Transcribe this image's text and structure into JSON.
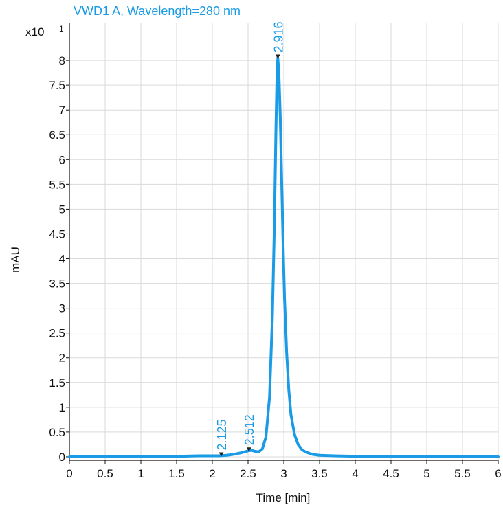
{
  "chart_data": {
    "type": "line",
    "title": "VWD1 A, Wavelength=280 nm",
    "xlabel": "Time [min]",
    "ylabel": "mAU",
    "y_multiplier": "x10",
    "y_exponent": "1",
    "xlim": [
      0,
      6
    ],
    "ylim": [
      -0.07,
      8.75
    ],
    "x_ticks": [
      "0",
      "0.5",
      "1",
      "1.5",
      "2",
      "2.5",
      "3",
      "3.5",
      "4",
      "4.5",
      "5",
      "5.5",
      "6"
    ],
    "y_ticks": [
      "0",
      "0.5",
      "1",
      "1.5",
      "2",
      "2.5",
      "3",
      "3.5",
      "4",
      "4.5",
      "5",
      "5.5",
      "6",
      "6.5",
      "7",
      "7.5",
      "8"
    ],
    "grid": true,
    "colors": {
      "trace": "#1a9be6",
      "marker": "#222222",
      "grid": "#d9d9d9",
      "axis": "#111111"
    },
    "series": [
      {
        "x": [
          0,
          0.5,
          1.0,
          1.3,
          1.5,
          1.8,
          2.0,
          2.1,
          2.2,
          2.3,
          2.4,
          2.45,
          2.5,
          2.55,
          2.6,
          2.65,
          2.7,
          2.75,
          2.8,
          2.84,
          2.87,
          2.89,
          2.905,
          2.916,
          2.93,
          2.95,
          2.97,
          2.99,
          3.01,
          3.04,
          3.07,
          3.1,
          3.15,
          3.2,
          3.25,
          3.3,
          3.4,
          3.5,
          3.7,
          4.0,
          4.5,
          5.0,
          5.5,
          6.0
        ],
        "y": [
          0.0,
          0.0,
          0.0,
          0.01,
          0.01,
          0.02,
          0.02,
          0.02,
          0.03,
          0.05,
          0.08,
          0.1,
          0.12,
          0.13,
          0.11,
          0.1,
          0.16,
          0.4,
          1.2,
          2.8,
          4.8,
          6.6,
          7.7,
          8.05,
          7.8,
          6.9,
          5.6,
          4.3,
          3.2,
          2.1,
          1.35,
          0.85,
          0.45,
          0.25,
          0.15,
          0.1,
          0.05,
          0.03,
          0.02,
          0.01,
          0.01,
          0.01,
          0.0,
          0.0
        ]
      }
    ],
    "peaks": [
      {
        "x": 2.125,
        "y": 0.02,
        "label": "2.125"
      },
      {
        "x": 2.512,
        "y": 0.12,
        "label": "2.512"
      },
      {
        "x": 2.916,
        "y": 8.05,
        "label": "2.916"
      }
    ]
  }
}
